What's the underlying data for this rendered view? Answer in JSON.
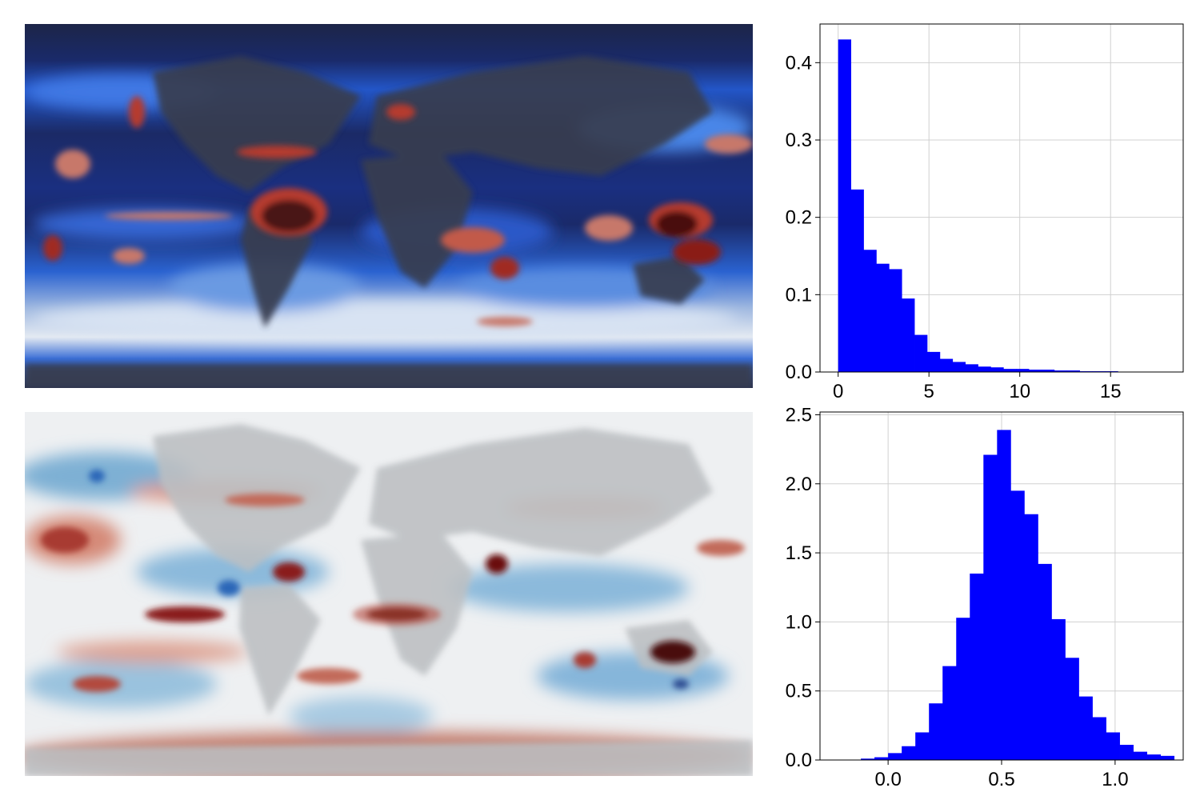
{
  "maps": [
    {
      "name": "map-top",
      "colormap": "dark-blue-white-red",
      "colors": [
        "#1a2550",
        "#1f4fd6",
        "#e9eef4",
        "#b0302a",
        "#4a1010"
      ],
      "land_mask_color": "#383c4e"
    },
    {
      "name": "map-bottom",
      "colormap": "blue-white-red",
      "colors": [
        "#1f5fb0",
        "#9cc4dc",
        "#f3f0ee",
        "#d07c6a",
        "#5c0c0c"
      ],
      "land_mask_color": "#b9bcbf"
    }
  ],
  "chart_data": [
    {
      "type": "bar",
      "subtype": "histogram",
      "bar_color": "#0000ff",
      "grid": true,
      "xlim": [
        -1,
        19
      ],
      "ylim": [
        0,
        0.45
      ],
      "xticks": [
        0,
        5,
        10,
        15
      ],
      "xtick_labels": [
        "0",
        "5",
        "10",
        "15"
      ],
      "yticks": [
        0.0,
        0.1,
        0.2,
        0.3,
        0.4
      ],
      "ytick_labels": [
        "0.0",
        "0.1",
        "0.2",
        "0.3",
        "0.4"
      ],
      "bin_edges": [
        0,
        0.7,
        1.4,
        2.1,
        2.8,
        3.5,
        4.2,
        4.9,
        5.6,
        6.3,
        7.0,
        7.7,
        8.4,
        9.1,
        9.8,
        10.5,
        11.2,
        11.9,
        12.6,
        13.3,
        14.0,
        14.7,
        15.4
      ],
      "values": [
        0.43,
        0.236,
        0.158,
        0.14,
        0.133,
        0.095,
        0.048,
        0.026,
        0.017,
        0.013,
        0.01,
        0.007,
        0.006,
        0.004,
        0.004,
        0.003,
        0.003,
        0.002,
        0.002,
        0.001,
        0.001,
        0.001
      ]
    },
    {
      "type": "bar",
      "subtype": "histogram",
      "bar_color": "#0000ff",
      "grid": true,
      "xlim": [
        -0.3,
        1.3
      ],
      "ylim": [
        0,
        2.52
      ],
      "xticks": [
        0.0,
        0.5,
        1.0
      ],
      "xtick_labels": [
        "0.0",
        "0.5",
        "1.0"
      ],
      "yticks": [
        0.0,
        0.5,
        1.0,
        1.5,
        2.0,
        2.5
      ],
      "ytick_labels": [
        "0.0",
        "0.5",
        "1.0",
        "1.5",
        "2.0",
        "2.5"
      ],
      "bin_edges": [
        -0.12,
        -0.06,
        0.0,
        0.06,
        0.12,
        0.18,
        0.24,
        0.3,
        0.36,
        0.42,
        0.48,
        0.54,
        0.6,
        0.66,
        0.72,
        0.78,
        0.84,
        0.9,
        0.96,
        1.02,
        1.08,
        1.14,
        1.2,
        1.26
      ],
      "values": [
        0.01,
        0.02,
        0.05,
        0.1,
        0.2,
        0.41,
        0.68,
        1.03,
        1.35,
        2.21,
        2.39,
        1.95,
        1.78,
        1.42,
        1.02,
        0.74,
        0.46,
        0.31,
        0.2,
        0.11,
        0.06,
        0.04,
        0.03
      ]
    }
  ]
}
